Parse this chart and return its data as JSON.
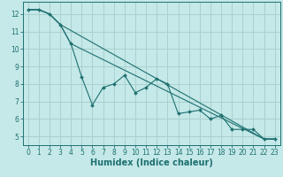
{
  "xlabel": "Humidex (Indice chaleur)",
  "bg_color": "#c5e8e8",
  "grid_color": "#aad0d0",
  "line_color": "#1e7070",
  "xlim": [
    -0.5,
    23.5
  ],
  "ylim": [
    4.5,
    12.7
  ],
  "yticks": [
    5,
    6,
    7,
    8,
    9,
    10,
    11,
    12
  ],
  "xticks": [
    0,
    1,
    2,
    3,
    4,
    5,
    6,
    7,
    8,
    9,
    10,
    11,
    12,
    13,
    14,
    15,
    16,
    17,
    18,
    19,
    20,
    21,
    22,
    23
  ],
  "line1_x": [
    0,
    1,
    2,
    3,
    4,
    5,
    6,
    7,
    8,
    9,
    10,
    11,
    12,
    13,
    14,
    15,
    16,
    17,
    18,
    19,
    20,
    21,
    22,
    23
  ],
  "line1_y": [
    12.25,
    12.25,
    12.0,
    11.4,
    10.3,
    8.4,
    6.8,
    7.8,
    8.0,
    8.5,
    7.5,
    7.8,
    8.3,
    8.0,
    6.3,
    6.4,
    6.5,
    6.0,
    6.2,
    5.4,
    5.4,
    5.4,
    4.85,
    4.85
  ],
  "line2_x": [
    0,
    1,
    2,
    3,
    22,
    23
  ],
  "line2_y": [
    12.25,
    12.25,
    12.0,
    11.4,
    4.85,
    4.85
  ],
  "line3_x": [
    0,
    1,
    2,
    3,
    4,
    22,
    23
  ],
  "line3_y": [
    12.25,
    12.25,
    12.0,
    11.4,
    10.3,
    4.85,
    4.85
  ],
  "tick_fontsize": 5.5,
  "xlabel_fontsize": 7,
  "lw": 0.8,
  "ms": 2.0
}
